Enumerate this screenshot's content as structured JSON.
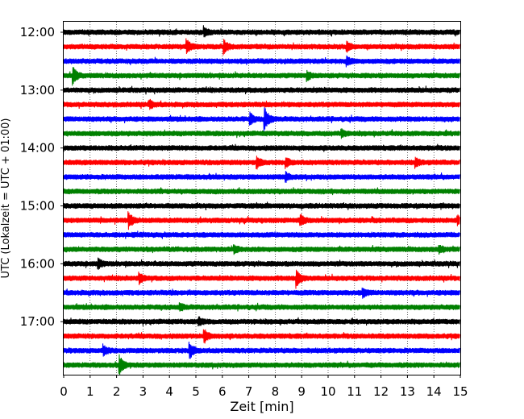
{
  "chart_data": {
    "type": "line",
    "title": "",
    "xlabel": "Zeit  [min]",
    "ylabel": "UTC (Lokalzeit = UTC + 01:00)",
    "xlim": [
      0,
      15
    ],
    "x_ticks": [
      "0",
      "1",
      "2",
      "3",
      "4",
      "5",
      "6",
      "7",
      "8",
      "9",
      "10",
      "11",
      "12",
      "13",
      "14",
      "15"
    ],
    "y_ticks": [
      "12:00",
      "13:00",
      "14:00",
      "15:00",
      "16:00",
      "17:00"
    ],
    "grid": "vertical dotted at each minute",
    "trace_interval_minutes": 15,
    "trace_start": "12:00",
    "trace_count": 24,
    "colors": [
      "#000000",
      "#ff0000",
      "#0000ff",
      "#008000"
    ],
    "events": [
      {
        "trace": 0,
        "minute": 5.3,
        "amp": 1.2
      },
      {
        "trace": 1,
        "minute": 4.65,
        "amp": 1.6
      },
      {
        "trace": 1,
        "minute": 6.05,
        "amp": 1.6
      },
      {
        "trace": 1,
        "minute": 10.7,
        "amp": 1.2
      },
      {
        "trace": 2,
        "minute": 10.7,
        "amp": 1.0
      },
      {
        "trace": 3,
        "minute": 0.35,
        "amp": 1.9
      },
      {
        "trace": 3,
        "minute": 9.2,
        "amp": 1.0
      },
      {
        "trace": 5,
        "minute": 3.25,
        "amp": 1.0
      },
      {
        "trace": 6,
        "minute": 7.6,
        "amp": 2.6
      },
      {
        "trace": 6,
        "minute": 7.05,
        "amp": 1.3
      },
      {
        "trace": 7,
        "minute": 10.5,
        "amp": 0.9
      },
      {
        "trace": 9,
        "minute": 7.3,
        "amp": 1.4
      },
      {
        "trace": 9,
        "minute": 8.4,
        "amp": 1.1
      },
      {
        "trace": 9,
        "minute": 13.3,
        "amp": 1.0
      },
      {
        "trace": 10,
        "minute": 8.4,
        "amp": 1.0
      },
      {
        "trace": 13,
        "minute": 2.45,
        "amp": 1.9
      },
      {
        "trace": 13,
        "minute": 8.95,
        "amp": 1.3
      },
      {
        "trace": 13,
        "minute": 14.9,
        "amp": 1.0
      },
      {
        "trace": 15,
        "minute": 6.45,
        "amp": 0.9
      },
      {
        "trace": 15,
        "minute": 14.2,
        "amp": 0.9
      },
      {
        "trace": 16,
        "minute": 1.3,
        "amp": 1.2
      },
      {
        "trace": 17,
        "minute": 8.8,
        "amp": 2.3
      },
      {
        "trace": 17,
        "minute": 2.85,
        "amp": 1.2
      },
      {
        "trace": 18,
        "minute": 11.3,
        "amp": 1.2
      },
      {
        "trace": 19,
        "minute": 4.4,
        "amp": 0.8
      },
      {
        "trace": 20,
        "minute": 5.1,
        "amp": 1.0
      },
      {
        "trace": 21,
        "minute": 5.3,
        "amp": 1.7
      },
      {
        "trace": 22,
        "minute": 4.75,
        "amp": 2.0
      },
      {
        "trace": 22,
        "minute": 1.5,
        "amp": 1.2
      },
      {
        "trace": 23,
        "minute": 2.1,
        "amp": 2.2
      }
    ]
  }
}
